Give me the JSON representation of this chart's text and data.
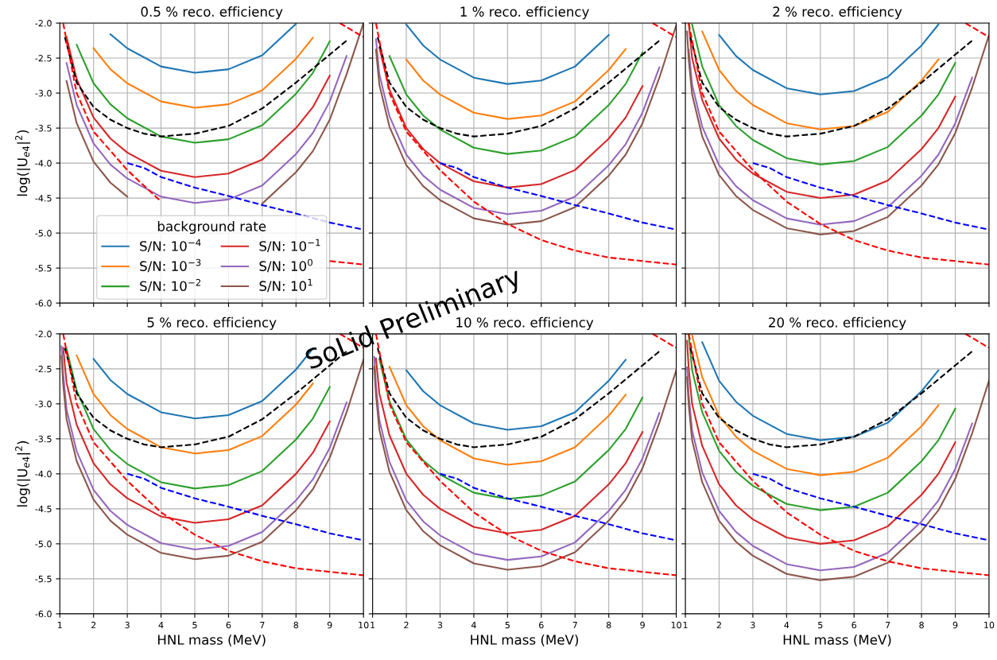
{
  "chart_data": [
    {
      "type": "line",
      "title": "0.5 % reco. efficiency",
      "ylabel": "log(|U$_{e4}$|$^{2}$)",
      "legend": "bottom",
      "legend_title": "background rate",
      "grid": true,
      "tick_labels": "y",
      "annotations": [
        "SoLid Preliminary"
      ],
      "xlim": [
        1,
        10
      ],
      "ylim": [
        -6.0,
        -2.0
      ],
      "xticks": [
        1,
        2,
        3,
        4,
        5,
        6,
        7,
        8,
        9,
        10
      ],
      "yticks": [
        {
          "value": -6.0,
          "label": "-6.0"
        },
        {
          "value": -5.5,
          "label": "-5.5"
        },
        {
          "value": -5.0,
          "label": "-5.0"
        },
        {
          "value": -4.5,
          "label": "-4.5"
        },
        {
          "value": -4.0,
          "label": "-4.0"
        },
        {
          "value": -3.5,
          "label": "-3.5"
        },
        {
          "value": -3.0,
          "label": "-3.0"
        },
        {
          "value": -2.5,
          "label": "-2.5"
        },
        {
          "value": -2.0,
          "label": "-2.0"
        }
      ],
      "x": [
        1.2,
        1.5,
        2,
        2.5,
        3,
        4,
        5,
        6,
        7,
        8,
        8.5,
        9,
        9.5,
        10
      ],
      "series": [
        {
          "name": "S/N: 10$^{−4}$",
          "color": "#1f77b4",
          "values": [
            null,
            null,
            null,
            -2.16,
            -2.36,
            -2.62,
            -2.71,
            -2.66,
            -2.46,
            -2.01,
            null,
            null,
            null,
            null
          ]
        },
        {
          "name": "S/N: 10$^{−3}$",
          "color": "#ff7f0e",
          "values": [
            null,
            null,
            -2.36,
            -2.66,
            -2.86,
            -3.12,
            -3.21,
            -3.16,
            -2.96,
            -2.51,
            -2.21,
            null,
            null,
            null
          ]
        },
        {
          "name": "S/N: 10$^{−2}$",
          "color": "#2ca02c",
          "values": [
            null,
            -2.31,
            -2.86,
            -3.16,
            -3.36,
            -3.62,
            -3.71,
            -3.66,
            -3.46,
            -3.01,
            -2.71,
            -2.26,
            null,
            null
          ]
        },
        {
          "name": "S/N: 10$^{−1}$",
          "color": "#d62728",
          "values": [
            -2.2,
            -2.8,
            -3.35,
            -3.65,
            -3.85,
            -4.11,
            -4.2,
            -4.15,
            -3.95,
            -3.5,
            -3.2,
            -2.75,
            null,
            null
          ]
        },
        {
          "name": "S/N: 10$^{0}$",
          "color": "#9467bd",
          "values": [
            -2.57,
            -3.17,
            -3.72,
            -4.02,
            -4.22,
            -4.48,
            -4.57,
            -4.52,
            -4.32,
            -3.87,
            -3.57,
            -3.12,
            -2.47,
            null
          ]
        },
        {
          "name": "S/N: 10$^{1}$",
          "color": "#8c564b",
          "values": [
            -2.83,
            -3.43,
            -3.98,
            -4.28,
            -4.48,
            null,
            null,
            null,
            -4.58,
            -4.13,
            -3.83,
            -3.38,
            -2.73,
            -2.0
          ]
        },
        {
          "color": "#000000",
          "line_style": "dashed",
          "x": [
            1.15,
            1.5,
            2,
            2.5,
            3,
            3.5,
            4,
            5,
            6,
            7,
            8,
            9,
            9.5
          ],
          "values": [
            -2.2,
            -2.85,
            -3.2,
            -3.38,
            -3.5,
            -3.58,
            -3.62,
            -3.58,
            -3.47,
            -3.22,
            -2.85,
            -2.45,
            -2.25
          ]
        },
        {
          "color": "#0000ff",
          "line_style": "dashed",
          "x": [
            3,
            3.5,
            4,
            5,
            6,
            7,
            8,
            9,
            10
          ],
          "values": [
            -4.0,
            -4.07,
            -4.2,
            -4.35,
            -4.47,
            -4.6,
            -4.72,
            -4.85,
            -4.95
          ]
        },
        {
          "color": "#ff0000",
          "line_style": "dashed",
          "x": [
            1.1,
            1.5,
            2,
            3,
            4,
            5,
            6,
            7,
            8,
            9,
            10
          ],
          "values": [
            -2.0,
            -3.0,
            -3.55,
            -4.1,
            -4.55,
            null,
            null,
            null,
            null,
            -5.4,
            -5.45
          ]
        },
        {
          "color": "#ff0000",
          "line_style": "dashed",
          "x": [
            9.3,
            10
          ],
          "values": [
            -2.0,
            -2.2
          ]
        }
      ]
    },
    {
      "type": "line",
      "title": "1 % reco. efficiency",
      "grid": true,
      "tick_labels": false,
      "xlim": [
        1,
        10
      ],
      "ylim": [
        -6.0,
        -2.0
      ],
      "xticks": [
        1,
        2,
        3,
        4,
        5,
        6,
        7,
        8,
        9,
        10
      ],
      "yticks": [
        {
          "value": -6.0,
          "label": null
        },
        {
          "value": -5.5,
          "label": null
        },
        {
          "value": -5.0,
          "label": null
        },
        {
          "value": -4.5,
          "label": null
        },
        {
          "value": -4.0,
          "label": null
        },
        {
          "value": -3.5,
          "label": null
        },
        {
          "value": -3.0,
          "label": null
        },
        {
          "value": -2.5,
          "label": null
        },
        {
          "value": -2.0,
          "label": null
        }
      ],
      "x": [
        1.1,
        1.2,
        1.5,
        2,
        2.5,
        3,
        4,
        5,
        6,
        7,
        8,
        8.5,
        9,
        9.5,
        10
      ],
      "series": [
        {
          "color": "#1f77b4",
          "values": [
            null,
            null,
            null,
            -2.02,
            -2.32,
            -2.52,
            -2.78,
            -2.87,
            -2.82,
            -2.62,
            -2.17,
            null,
            null,
            null,
            null
          ]
        },
        {
          "color": "#ff7f0e",
          "values": [
            null,
            null,
            null,
            -2.52,
            -2.82,
            -3.02,
            -3.28,
            -3.37,
            -3.32,
            -3.12,
            -2.67,
            -2.37,
            null,
            null,
            null
          ]
        },
        {
          "color": "#2ca02c",
          "values": [
            null,
            null,
            -2.47,
            -3.02,
            -3.32,
            -3.52,
            -3.78,
            -3.87,
            -3.82,
            -3.62,
            -3.17,
            -2.87,
            -2.42,
            null,
            null
          ]
        },
        {
          "color": "#d62728",
          "values": [
            null,
            -2.35,
            -2.95,
            -3.5,
            -3.8,
            -4.0,
            -4.26,
            -4.35,
            -4.3,
            -4.1,
            -3.65,
            -3.35,
            -2.9,
            null,
            null
          ]
        },
        {
          "color": "#9467bd",
          "values": [
            -2.23,
            -2.73,
            -3.33,
            -3.88,
            -4.18,
            -4.38,
            -4.64,
            -4.73,
            -4.68,
            -4.48,
            -4.03,
            -3.73,
            -3.28,
            -2.63,
            null
          ]
        },
        {
          "color": "#8c564b",
          "values": [
            -2.38,
            -2.88,
            -3.48,
            -4.03,
            -4.33,
            -4.53,
            -4.79,
            -4.88,
            -4.83,
            -4.63,
            -4.18,
            -3.88,
            -3.43,
            -2.78,
            -2.03
          ]
        },
        {
          "color": "#000000",
          "line_style": "dashed",
          "x": [
            1.15,
            1.5,
            2,
            2.5,
            3,
            3.5,
            4,
            5,
            6,
            7,
            8,
            9,
            9.5
          ],
          "values": [
            -2.2,
            -2.85,
            -3.2,
            -3.38,
            -3.5,
            -3.58,
            -3.62,
            -3.58,
            -3.47,
            -3.22,
            -2.85,
            -2.45,
            -2.25
          ]
        },
        {
          "color": "#0000ff",
          "line_style": "dashed",
          "x": [
            3,
            3.5,
            4,
            5,
            6,
            7,
            8,
            9,
            10
          ],
          "values": [
            -4.0,
            -4.07,
            -4.2,
            -4.35,
            -4.47,
            -4.6,
            -4.72,
            -4.85,
            -4.95
          ]
        },
        {
          "color": "#ff0000",
          "line_style": "dashed",
          "x": [
            1.1,
            1.5,
            2,
            3,
            4,
            5,
            6,
            7,
            8,
            9,
            10
          ],
          "values": [
            -2.0,
            -3.0,
            -3.55,
            -4.1,
            -4.55,
            -4.87,
            -5.1,
            -5.25,
            -5.35,
            -5.4,
            -5.45
          ]
        },
        {
          "color": "#ff0000",
          "line_style": "dashed",
          "x": [
            9.3,
            10
          ],
          "values": [
            -2.0,
            -2.2
          ]
        }
      ]
    },
    {
      "type": "line",
      "title": "2 % reco. efficiency",
      "grid": true,
      "tick_labels": false,
      "xlim": [
        1,
        10
      ],
      "ylim": [
        -6.0,
        -2.0
      ],
      "xticks": [
        1,
        2,
        3,
        4,
        5,
        6,
        7,
        8,
        9,
        10
      ],
      "yticks": [
        {
          "value": -6.0,
          "label": null
        },
        {
          "value": -5.5,
          "label": null
        },
        {
          "value": -5.0,
          "label": null
        },
        {
          "value": -4.5,
          "label": null
        },
        {
          "value": -4.0,
          "label": null
        },
        {
          "value": -3.5,
          "label": null
        },
        {
          "value": -3.0,
          "label": null
        },
        {
          "value": -2.5,
          "label": null
        },
        {
          "value": -2.0,
          "label": null
        }
      ],
      "x": [
        1.05,
        1.1,
        1.2,
        1.5,
        2,
        2.5,
        3,
        4,
        5,
        6,
        7,
        8,
        8.5,
        9,
        9.5,
        10
      ],
      "series": [
        {
          "color": "#1f77b4",
          "values": [
            null,
            null,
            null,
            null,
            -2.17,
            -2.47,
            -2.67,
            -2.93,
            -3.02,
            -2.97,
            -2.77,
            -2.32,
            -2.02,
            null,
            null,
            null
          ]
        },
        {
          "color": "#ff7f0e",
          "values": [
            null,
            null,
            null,
            -2.12,
            -2.67,
            -2.97,
            -3.17,
            -3.43,
            -3.52,
            -3.47,
            -3.27,
            -2.82,
            -2.52,
            null,
            null,
            null
          ]
        },
        {
          "color": "#2ca02c",
          "values": [
            null,
            null,
            -2.02,
            -2.62,
            -3.17,
            -3.47,
            -3.67,
            -3.93,
            -4.02,
            -3.97,
            -3.77,
            -3.32,
            -3.02,
            -2.57,
            null,
            null
          ]
        },
        {
          "color": "#d62728",
          "values": [
            null,
            -2.0,
            -2.5,
            -3.1,
            -3.65,
            -3.95,
            -4.15,
            -4.41,
            -4.5,
            -4.45,
            -4.25,
            -3.8,
            -3.5,
            -3.05,
            null,
            null
          ]
        },
        {
          "color": "#9467bd",
          "values": [
            null,
            -2.38,
            -2.88,
            -3.48,
            -4.03,
            -4.33,
            -4.53,
            -4.79,
            -4.88,
            -4.83,
            -4.63,
            -4.18,
            -3.88,
            -3.43,
            -2.78,
            null
          ]
        },
        {
          "color": "#8c564b",
          "values": [
            -2.12,
            -2.52,
            -3.02,
            -3.62,
            -4.17,
            -4.47,
            -4.67,
            -4.93,
            -5.02,
            -4.97,
            -4.77,
            -4.32,
            -4.02,
            -3.57,
            -2.92,
            -2.17
          ]
        },
        {
          "color": "#000000",
          "line_style": "dashed",
          "x": [
            1.15,
            1.5,
            2,
            2.5,
            3,
            3.5,
            4,
            5,
            6,
            7,
            8,
            9,
            9.5
          ],
          "values": [
            -2.2,
            -2.85,
            -3.2,
            -3.38,
            -3.5,
            -3.58,
            -3.62,
            -3.58,
            -3.47,
            -3.22,
            -2.85,
            -2.45,
            -2.25
          ]
        },
        {
          "color": "#0000ff",
          "line_style": "dashed",
          "x": [
            3,
            3.5,
            4,
            5,
            6,
            7,
            8,
            9,
            10
          ],
          "values": [
            -4.0,
            -4.07,
            -4.2,
            -4.35,
            -4.47,
            -4.6,
            -4.72,
            -4.85,
            -4.95
          ]
        },
        {
          "color": "#ff0000",
          "line_style": "dashed",
          "x": [
            1.1,
            1.5,
            2,
            3,
            4,
            5,
            6,
            7,
            8,
            9,
            10
          ],
          "values": [
            -2.0,
            -3.0,
            -3.55,
            -4.1,
            -4.55,
            -4.87,
            -5.1,
            -5.25,
            -5.35,
            -5.4,
            -5.45
          ]
        },
        {
          "color": "#ff0000",
          "line_style": "dashed",
          "x": [
            9.3,
            10
          ],
          "values": [
            -2.0,
            -2.2
          ]
        }
      ]
    },
    {
      "type": "line",
      "title": "5 % reco. efficiency",
      "xlabel": "HNL mass (MeV)",
      "ylabel": "log(|U$_{e4}$|$^{2}$)",
      "grid": true,
      "xlim": [
        1,
        10
      ],
      "ylim": [
        -6.0,
        -2.0
      ],
      "xticks": [
        1,
        2,
        3,
        4,
        5,
        6,
        7,
        8,
        9,
        10
      ],
      "yticks": [
        {
          "value": -6.0,
          "label": "-6.0"
        },
        {
          "value": -5.5,
          "label": "-5.5"
        },
        {
          "value": -5.0,
          "label": "-5.0"
        },
        {
          "value": -4.5,
          "label": "-4.5"
        },
        {
          "value": -4.0,
          "label": "-4.0"
        },
        {
          "value": -3.5,
          "label": "-3.5"
        },
        {
          "value": -3.0,
          "label": "-3.0"
        },
        {
          "value": -2.5,
          "label": "-2.5"
        },
        {
          "value": -2.0,
          "label": "-2.0"
        }
      ],
      "x": [
        1.05,
        1.1,
        1.2,
        1.5,
        2,
        2.5,
        3,
        4,
        5,
        6,
        7,
        8,
        8.5,
        9,
        9.5,
        10
      ],
      "series": [
        {
          "color": "#1f77b4",
          "values": [
            null,
            null,
            null,
            null,
            -2.36,
            -2.66,
            -2.86,
            -3.12,
            -3.21,
            -3.16,
            -2.96,
            -2.51,
            -2.21,
            null,
            null,
            null
          ]
        },
        {
          "color": "#ff7f0e",
          "values": [
            null,
            null,
            null,
            -2.31,
            -2.86,
            -3.16,
            -3.36,
            -3.62,
            -3.71,
            -3.66,
            -3.46,
            -3.01,
            -2.71,
            null,
            null,
            null
          ]
        },
        {
          "color": "#2ca02c",
          "values": [
            null,
            null,
            -2.21,
            -2.81,
            -3.36,
            -3.66,
            -3.86,
            -4.12,
            -4.21,
            -4.16,
            -3.96,
            -3.51,
            -3.21,
            -2.76,
            null,
            null
          ]
        },
        {
          "color": "#d62728",
          "values": [
            null,
            -2.2,
            -2.7,
            -3.3,
            -3.85,
            -4.15,
            -4.35,
            -4.61,
            -4.7,
            -4.65,
            -4.45,
            -4.0,
            -3.7,
            -3.25,
            null,
            null
          ]
        },
        {
          "color": "#9467bd",
          "values": [
            -2.18,
            -2.58,
            -3.08,
            -3.68,
            -4.23,
            -4.53,
            -4.73,
            -4.99,
            -5.08,
            -5.03,
            -4.83,
            -4.38,
            -4.08,
            -3.63,
            -2.98,
            null
          ]
        },
        {
          "color": "#8c564b",
          "values": [
            -2.32,
            -2.72,
            -3.22,
            -3.82,
            -4.37,
            -4.67,
            -4.87,
            -5.13,
            -5.22,
            -5.17,
            -4.97,
            -4.52,
            -4.22,
            -3.77,
            -3.12,
            -2.37
          ]
        },
        {
          "color": "#000000",
          "line_style": "dashed",
          "x": [
            1.15,
            1.5,
            2,
            2.5,
            3,
            3.5,
            4,
            5,
            6,
            7,
            8,
            9,
            9.5
          ],
          "values": [
            -2.2,
            -2.85,
            -3.2,
            -3.38,
            -3.5,
            -3.58,
            -3.62,
            -3.58,
            -3.47,
            -3.22,
            -2.85,
            -2.45,
            -2.25
          ]
        },
        {
          "color": "#0000ff",
          "line_style": "dashed",
          "x": [
            3,
            3.5,
            4,
            5,
            6,
            7,
            8,
            9,
            10
          ],
          "values": [
            -4.0,
            -4.07,
            -4.2,
            -4.35,
            -4.47,
            -4.6,
            -4.72,
            -4.85,
            -4.95
          ]
        },
        {
          "color": "#ff0000",
          "line_style": "dashed",
          "x": [
            1.1,
            1.5,
            2,
            3,
            4,
            5,
            6,
            7,
            8,
            9,
            10
          ],
          "values": [
            -2.0,
            -3.0,
            -3.55,
            -4.1,
            -4.55,
            -4.87,
            -5.1,
            -5.25,
            -5.35,
            -5.4,
            -5.45
          ]
        },
        {
          "color": "#ff0000",
          "line_style": "dashed",
          "x": [
            9.3,
            10
          ],
          "values": [
            -2.0,
            -2.2
          ]
        }
      ]
    },
    {
      "type": "line",
      "title": "10 % reco. efficiency",
      "xlabel": "HNL mass (MeV)",
      "grid": true,
      "tick_labels": "x",
      "xlim": [
        1,
        10
      ],
      "ylim": [
        -6.0,
        -2.0
      ],
      "xticks": [
        1,
        2,
        3,
        4,
        5,
        6,
        7,
        8,
        9,
        10
      ],
      "yticks": [
        {
          "value": -6.0,
          "label": null
        },
        {
          "value": -5.5,
          "label": null
        },
        {
          "value": -5.0,
          "label": null
        },
        {
          "value": -4.5,
          "label": null
        },
        {
          "value": -4.0,
          "label": null
        },
        {
          "value": -3.5,
          "label": null
        },
        {
          "value": -3.0,
          "label": null
        },
        {
          "value": -2.5,
          "label": null
        },
        {
          "value": -2.0,
          "label": null
        }
      ],
      "x": [
        1.05,
        1.1,
        1.2,
        1.5,
        2,
        2.5,
        3,
        4,
        5,
        6,
        7,
        8,
        8.5,
        9,
        9.5,
        10
      ],
      "series": [
        {
          "color": "#1f77b4",
          "values": [
            null,
            null,
            null,
            null,
            -2.52,
            -2.82,
            -3.02,
            -3.28,
            -3.37,
            -3.32,
            -3.12,
            -2.67,
            -2.37,
            null,
            null,
            null
          ]
        },
        {
          "color": "#ff7f0e",
          "values": [
            null,
            null,
            null,
            -2.47,
            -3.02,
            -3.32,
            -3.52,
            -3.78,
            -3.87,
            -3.82,
            -3.62,
            -3.17,
            -2.87,
            null,
            null,
            null
          ]
        },
        {
          "color": "#2ca02c",
          "values": [
            null,
            null,
            -2.36,
            -2.96,
            -3.51,
            -3.81,
            -4.01,
            -4.27,
            -4.36,
            -4.31,
            -4.11,
            -3.66,
            -3.36,
            -2.91,
            null,
            null
          ]
        },
        {
          "color": "#d62728",
          "values": [
            null,
            -2.35,
            -2.85,
            -3.45,
            -4.0,
            -4.3,
            -4.5,
            -4.76,
            -4.85,
            -4.8,
            -4.6,
            -4.15,
            -3.85,
            -3.4,
            null,
            null
          ]
        },
        {
          "color": "#9467bd",
          "values": [
            -2.33,
            -2.73,
            -3.23,
            -3.83,
            -4.38,
            -4.68,
            -4.88,
            -5.14,
            -5.23,
            -5.18,
            -4.98,
            -4.53,
            -4.23,
            -3.78,
            -3.13,
            null
          ]
        },
        {
          "color": "#8c564b",
          "values": [
            -2.47,
            -2.87,
            -3.37,
            -3.97,
            -4.52,
            -4.82,
            -5.02,
            -5.28,
            -5.37,
            -5.32,
            -5.12,
            -4.67,
            -4.37,
            -3.92,
            -3.27,
            -2.52
          ]
        },
        {
          "color": "#000000",
          "line_style": "dashed",
          "x": [
            1.15,
            1.5,
            2,
            2.5,
            3,
            3.5,
            4,
            5,
            6,
            7,
            8,
            9,
            9.5
          ],
          "values": [
            -2.2,
            -2.85,
            -3.2,
            -3.38,
            -3.5,
            -3.58,
            -3.62,
            -3.58,
            -3.47,
            -3.22,
            -2.85,
            -2.45,
            -2.25
          ]
        },
        {
          "color": "#0000ff",
          "line_style": "dashed",
          "x": [
            3,
            3.5,
            4,
            5,
            6,
            7,
            8,
            9,
            10
          ],
          "values": [
            -4.0,
            -4.07,
            -4.2,
            -4.35,
            -4.47,
            -4.6,
            -4.72,
            -4.85,
            -4.95
          ]
        },
        {
          "color": "#ff0000",
          "line_style": "dashed",
          "x": [
            1.1,
            1.5,
            2,
            3,
            4,
            5,
            6,
            7,
            8,
            9,
            10
          ],
          "values": [
            -2.0,
            -3.0,
            -3.55,
            -4.1,
            -4.55,
            -4.87,
            -5.1,
            -5.25,
            -5.35,
            -5.4,
            -5.45
          ]
        },
        {
          "color": "#ff0000",
          "line_style": "dashed",
          "x": [
            9.3,
            10
          ],
          "values": [
            -2.0,
            -2.2
          ]
        }
      ]
    },
    {
      "type": "line",
      "title": "20 % reco. efficiency",
      "xlabel": "HNL mass (MeV)",
      "grid": true,
      "tick_labels": "x",
      "xlim": [
        1,
        10
      ],
      "ylim": [
        -6.0,
        -2.0
      ],
      "xticks": [
        1,
        2,
        3,
        4,
        5,
        6,
        7,
        8,
        9,
        10
      ],
      "yticks": [
        {
          "value": -6.0,
          "label": null
        },
        {
          "value": -5.5,
          "label": null
        },
        {
          "value": -5.0,
          "label": null
        },
        {
          "value": -4.5,
          "label": null
        },
        {
          "value": -4.0,
          "label": null
        },
        {
          "value": -3.5,
          "label": null
        },
        {
          "value": -3.0,
          "label": null
        },
        {
          "value": -2.5,
          "label": null
        },
        {
          "value": -2.0,
          "label": null
        }
      ],
      "x": [
        1.05,
        1.1,
        1.2,
        1.5,
        2,
        2.5,
        3,
        4,
        5,
        6,
        7,
        8,
        8.5,
        9,
        9.5,
        10
      ],
      "series": [
        {
          "color": "#1f77b4",
          "values": [
            null,
            null,
            null,
            -2.12,
            -2.67,
            -2.97,
            -3.17,
            -3.43,
            -3.52,
            -3.47,
            -3.27,
            -2.82,
            -2.52,
            null,
            null,
            null
          ]
        },
        {
          "color": "#ff7f0e",
          "values": [
            null,
            null,
            -2.02,
            -2.62,
            -3.17,
            -3.47,
            -3.67,
            -3.93,
            -4.02,
            -3.97,
            -3.77,
            -3.32,
            -3.02,
            null,
            null,
            null
          ]
        },
        {
          "color": "#2ca02c",
          "values": [
            null,
            -2.02,
            -2.52,
            -3.12,
            -3.67,
            -3.97,
            -4.17,
            -4.43,
            -4.52,
            -4.47,
            -4.27,
            -3.82,
            -3.52,
            -3.07,
            null,
            null
          ]
        },
        {
          "color": "#d62728",
          "values": [
            -2.1,
            -2.5,
            -3.0,
            -3.6,
            -4.15,
            -4.45,
            -4.65,
            -4.91,
            -5.0,
            -4.95,
            -4.75,
            -4.3,
            -4.0,
            -3.55,
            null,
            null
          ]
        },
        {
          "color": "#9467bd",
          "values": [
            -2.48,
            -2.88,
            -3.38,
            -3.98,
            -4.53,
            -4.83,
            -5.03,
            -5.29,
            -5.38,
            -5.33,
            -5.13,
            -4.68,
            -4.38,
            -3.93,
            -3.28,
            null
          ]
        },
        {
          "color": "#8c564b",
          "values": [
            -2.62,
            -3.02,
            -3.52,
            -4.12,
            -4.67,
            -4.97,
            -5.17,
            -5.43,
            -5.52,
            -5.47,
            -5.27,
            -4.82,
            -4.52,
            -4.07,
            -3.42,
            -2.67
          ]
        },
        {
          "color": "#000000",
          "line_style": "dashed",
          "x": [
            1.15,
            1.5,
            2,
            2.5,
            3,
            3.5,
            4,
            5,
            6,
            7,
            8,
            9,
            9.5
          ],
          "values": [
            -2.2,
            -2.85,
            -3.2,
            -3.38,
            -3.5,
            -3.58,
            -3.62,
            -3.58,
            -3.47,
            -3.22,
            -2.85,
            -2.45,
            -2.25
          ]
        },
        {
          "color": "#0000ff",
          "line_style": "dashed",
          "x": [
            3,
            3.5,
            4,
            5,
            6,
            7,
            8,
            9,
            10
          ],
          "values": [
            -4.0,
            -4.07,
            -4.2,
            -4.35,
            -4.47,
            -4.6,
            -4.72,
            -4.85,
            -4.95
          ]
        },
        {
          "color": "#ff0000",
          "line_style": "dashed",
          "x": [
            1.1,
            1.5,
            2,
            3,
            4,
            5,
            6,
            7,
            8,
            9,
            10
          ],
          "values": [
            -2.0,
            -3.0,
            -3.55,
            -4.1,
            -4.55,
            -4.87,
            -5.1,
            -5.25,
            -5.35,
            -5.4,
            -5.45
          ]
        },
        {
          "color": "#ff0000",
          "line_style": "dashed",
          "x": [
            9.3,
            10
          ],
          "values": [
            -2.0,
            -2.2
          ]
        }
      ]
    }
  ]
}
